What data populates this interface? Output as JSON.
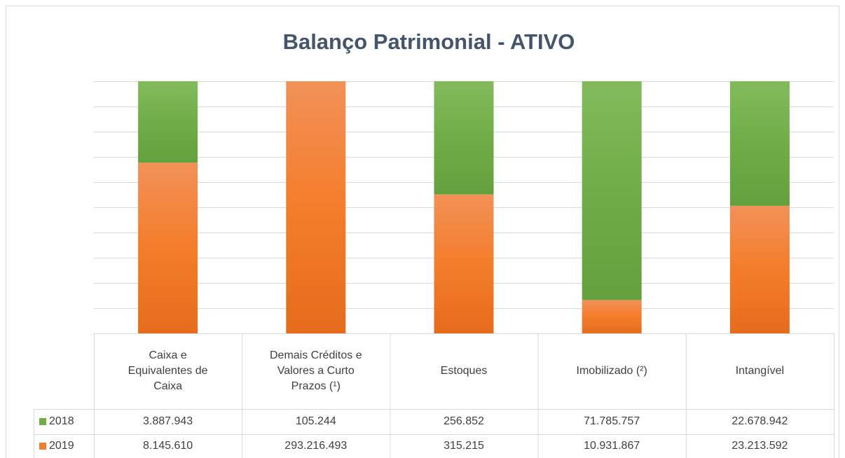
{
  "chart_data": {
    "type": "bar",
    "stacked": "percent",
    "title": "Balanço Patrimonial - ATIVO",
    "categories": [
      "Caixa e Equivalentes de Caixa",
      "Demais Créditos e Valores a Curto Prazos (¹)",
      "Estoques",
      "Imobilizado (²)",
      "Intangível"
    ],
    "series": [
      {
        "name": "2018",
        "color": "#70ad47",
        "values": [
          3887943,
          105244,
          256852,
          71785757,
          22678942
        ],
        "value_labels": [
          "3.887.943",
          "105.244",
          "256.852",
          "71.785.757",
          "22.678.942"
        ]
      },
      {
        "name": "2019",
        "color": "#ed7d31",
        "values": [
          8145610,
          293216493,
          315215,
          10931867,
          23213592
        ],
        "value_labels": [
          "8.145.610",
          "293.216.493",
          "315.215",
          "10.931.867",
          "23.213.592"
        ]
      }
    ],
    "ylim": [
      0,
      100
    ],
    "yticks": [
      0,
      10,
      20,
      30,
      40,
      50,
      60,
      70,
      80,
      90,
      100
    ],
    "grid": true,
    "data_table": true
  }
}
